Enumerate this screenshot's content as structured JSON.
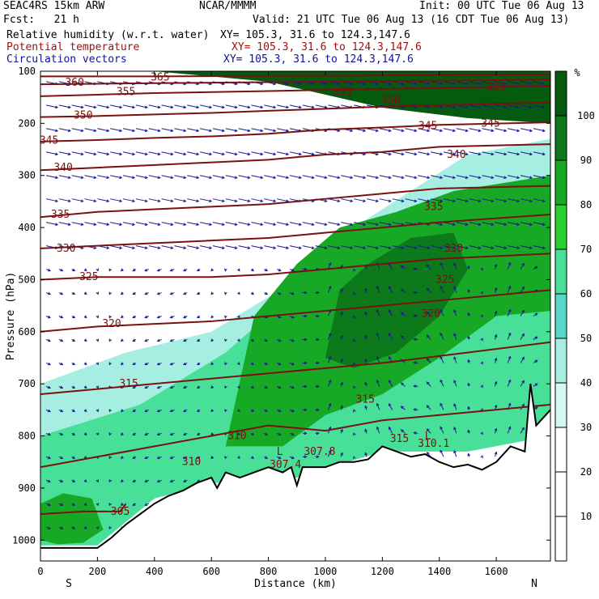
{
  "header": {
    "model": "SEAC4RS 15km ARW",
    "forecast": "Fcst:   21 h",
    "org": "NCAR/MMMM",
    "init": "Init: 00 UTC Tue 06 Aug 13",
    "valid": "Valid: 21 UTC Tue 06 Aug 13 (16 CDT Tue 06 Aug 13)",
    "fields": [
      {
        "label": "Relative humidity (w.r.t. water)",
        "xy": "XY= 105.3, 31.6 to 124.3,147.6",
        "color": "#000000"
      },
      {
        "label": "Potential temperature",
        "xy": "XY= 105.3, 31.6 to 124.3,147.6",
        "color": "#a01010"
      },
      {
        "label": "Circulation vectors",
        "xy": "XY= 105.3, 31.6 to 124.3,147.6",
        "color": "#1010a0"
      }
    ]
  },
  "chart_data": {
    "type": "heatmap",
    "title": "",
    "xlabel": "Distance (km)",
    "ylabel": "Pressure (hPa)",
    "xlim": [
      0,
      1790
    ],
    "ylim": [
      1040,
      100
    ],
    "x_ticks": [
      0,
      200,
      400,
      600,
      800,
      1000,
      1200,
      1400,
      1600
    ],
    "y_ticks": [
      100,
      200,
      300,
      400,
      500,
      600,
      700,
      800,
      900,
      1000
    ],
    "x_end_labels": {
      "left": "S",
      "right": "N"
    },
    "colorbar": {
      "unit": "%",
      "levels": [
        10,
        20,
        30,
        40,
        50,
        60,
        70,
        80,
        90,
        100
      ],
      "colors": [
        "#ffffff",
        "#ffffff",
        "#ffffff",
        "#d6f7f0",
        "#a6eee2",
        "#55d8c8",
        "#48e098",
        "#28d030",
        "#17a825",
        "#0c7a1a",
        "#065a10"
      ]
    },
    "rh_regions": [
      {
        "points": [
          [
            0,
            1010
          ],
          [
            0,
            700
          ],
          [
            300,
            640
          ],
          [
            600,
            600
          ],
          [
            900,
            500
          ],
          [
            1100,
            400
          ],
          [
            1300,
            330
          ],
          [
            1500,
            260
          ],
          [
            1790,
            230
          ],
          [
            1790,
            800
          ],
          [
            1200,
            820
          ],
          [
            800,
            870
          ],
          [
            400,
            920
          ],
          [
            200,
            1010
          ]
        ],
        "rh": 45
      },
      {
        "points": [
          [
            0,
            1010
          ],
          [
            0,
            800
          ],
          [
            350,
            740
          ],
          [
            650,
            640
          ],
          [
            900,
            520
          ],
          [
            1100,
            430
          ],
          [
            1350,
            360
          ],
          [
            1790,
            300
          ],
          [
            1790,
            800
          ],
          [
            1500,
            830
          ],
          [
            1200,
            830
          ],
          [
            900,
            880
          ],
          [
            600,
            890
          ],
          [
            400,
            920
          ],
          [
            200,
            1010
          ]
        ],
        "rh": 65
      },
      {
        "points": [
          [
            650,
            820
          ],
          [
            750,
            570
          ],
          [
            900,
            470
          ],
          [
            1050,
            400
          ],
          [
            1250,
            370
          ],
          [
            1450,
            330
          ],
          [
            1790,
            300
          ],
          [
            1790,
            560
          ],
          [
            1600,
            570
          ],
          [
            1400,
            650
          ],
          [
            1200,
            720
          ],
          [
            1000,
            760
          ],
          [
            850,
            820
          ]
        ],
        "rh": 85
      },
      {
        "points": [
          [
            1000,
            650
          ],
          [
            1050,
            520
          ],
          [
            1150,
            470
          ],
          [
            1300,
            420
          ],
          [
            1450,
            410
          ],
          [
            1500,
            480
          ],
          [
            1400,
            570
          ],
          [
            1250,
            640
          ],
          [
            1100,
            670
          ]
        ],
        "rh": 95
      },
      {
        "points": [
          [
            0,
            1000
          ],
          [
            0,
            930
          ],
          [
            80,
            910
          ],
          [
            180,
            920
          ],
          [
            220,
            980
          ],
          [
            150,
            1005
          ],
          [
            60,
            1008
          ]
        ],
        "rh": 85
      },
      {
        "points": [
          [
            1790,
            100
          ],
          [
            1790,
            200
          ],
          [
            1500,
            190
          ],
          [
            1200,
            170
          ],
          [
            800,
            120
          ],
          [
            400,
            100
          ]
        ],
        "rh": 100
      }
    ],
    "theta_contours": [
      {
        "value": 305,
        "label": "305",
        "label_x": 280,
        "label_y": 945,
        "points": [
          [
            0,
            950
          ],
          [
            150,
            945
          ],
          [
            280,
            945
          ],
          [
            300,
            930
          ]
        ]
      },
      {
        "value": 310,
        "label": "310",
        "label_x": 530,
        "label_y": 850,
        "points": [
          [
            0,
            860
          ],
          [
            200,
            840
          ],
          [
            400,
            820
          ],
          [
            600,
            800
          ],
          [
            800,
            780
          ],
          [
            1000,
            790
          ],
          [
            1200,
            770
          ],
          [
            1400,
            760
          ],
          [
            1790,
            740
          ]
        ]
      },
      {
        "value": 315,
        "label": "315",
        "label_x": 310,
        "label_y": 700,
        "points": [
          [
            0,
            720
          ],
          [
            200,
            710
          ],
          [
            400,
            700
          ],
          [
            600,
            690
          ],
          [
            800,
            680
          ],
          [
            1000,
            670
          ],
          [
            1200,
            660
          ],
          [
            1500,
            640
          ],
          [
            1790,
            620
          ]
        ]
      },
      {
        "value": 320,
        "label": "320",
        "label_x": 250,
        "label_y": 585,
        "points": [
          [
            0,
            600
          ],
          [
            200,
            590
          ],
          [
            400,
            585
          ],
          [
            600,
            580
          ],
          [
            800,
            570
          ],
          [
            1000,
            560
          ],
          [
            1200,
            550
          ],
          [
            1400,
            540
          ],
          [
            1790,
            520
          ]
        ]
      },
      {
        "value": 325,
        "label": "325",
        "label_x": 170,
        "label_y": 495,
        "points": [
          [
            0,
            500
          ],
          [
            200,
            495
          ],
          [
            400,
            495
          ],
          [
            600,
            495
          ],
          [
            800,
            490
          ],
          [
            1000,
            480
          ],
          [
            1200,
            470
          ],
          [
            1400,
            460
          ],
          [
            1790,
            450
          ]
        ]
      },
      {
        "value": 330,
        "label": "330",
        "label_x": 90,
        "label_y": 440,
        "points": [
          [
            0,
            440
          ],
          [
            200,
            435
          ],
          [
            400,
            430
          ],
          [
            600,
            425
          ],
          [
            800,
            420
          ],
          [
            1000,
            410
          ],
          [
            1200,
            400
          ],
          [
            1400,
            390
          ],
          [
            1790,
            375
          ]
        ]
      },
      {
        "value": 335,
        "label": "335",
        "label_x": 70,
        "label_y": 375,
        "points": [
          [
            0,
            380
          ],
          [
            200,
            370
          ],
          [
            400,
            365
          ],
          [
            600,
            360
          ],
          [
            800,
            355
          ],
          [
            1000,
            345
          ],
          [
            1200,
            335
          ],
          [
            1400,
            325
          ],
          [
            1790,
            320
          ]
        ]
      },
      {
        "value": 340,
        "label": "340",
        "label_x": 80,
        "label_y": 285,
        "points": [
          [
            0,
            290
          ],
          [
            200,
            285
          ],
          [
            400,
            280
          ],
          [
            600,
            275
          ],
          [
            800,
            270
          ],
          [
            1000,
            260
          ],
          [
            1200,
            255
          ],
          [
            1400,
            245
          ],
          [
            1790,
            240
          ]
        ]
      },
      {
        "value": 345,
        "label": "345",
        "label_x": 30,
        "label_y": 233,
        "points": [
          [
            0,
            235
          ],
          [
            200,
            232
          ],
          [
            400,
            228
          ],
          [
            600,
            225
          ],
          [
            800,
            220
          ],
          [
            1000,
            212
          ],
          [
            1200,
            208
          ],
          [
            1400,
            203
          ],
          [
            1790,
            198
          ]
        ]
      },
      {
        "value": 350,
        "label": "350",
        "label_x": 150,
        "label_y": 185,
        "points": [
          [
            0,
            188
          ],
          [
            200,
            186
          ],
          [
            400,
            183
          ],
          [
            600,
            180
          ],
          [
            800,
            176
          ],
          [
            1000,
            172
          ],
          [
            1200,
            168
          ],
          [
            1400,
            165
          ],
          [
            1790,
            160
          ]
        ]
      },
      {
        "value": 355,
        "label": "355",
        "label_x": 300,
        "label_y": 140,
        "points": [
          [
            0,
            148
          ],
          [
            200,
            145
          ],
          [
            400,
            142
          ],
          [
            600,
            140
          ],
          [
            800,
            138
          ],
          [
            1000,
            136
          ],
          [
            1200,
            134
          ],
          [
            1400,
            132
          ],
          [
            1790,
            128
          ]
        ]
      },
      {
        "value": 360,
        "label": "360",
        "label_x": 120,
        "label_y": 122,
        "points": [
          [
            0,
            125
          ],
          [
            200,
            124
          ],
          [
            400,
            123
          ],
          [
            600,
            122
          ],
          [
            800,
            121
          ],
          [
            1000,
            120
          ],
          [
            1200,
            119
          ],
          [
            1400,
            118
          ],
          [
            1790,
            116
          ]
        ]
      },
      {
        "value": 365,
        "label": "365",
        "label_x": 420,
        "label_y": 112,
        "points": [
          [
            0,
            110
          ],
          [
            400,
            110
          ],
          [
            800,
            109
          ],
          [
            1200,
            108
          ],
          [
            1790,
            106
          ]
        ]
      }
    ],
    "contour_labels": [
      {
        "text": "355",
        "x": 1060,
        "y": 140
      },
      {
        "text": "350",
        "x": 1230,
        "y": 155
      },
      {
        "text": "345",
        "x": 1360,
        "y": 205
      },
      {
        "text": "345",
        "x": 1580,
        "y": 200
      },
      {
        "text": "340",
        "x": 1460,
        "y": 260
      },
      {
        "text": "335",
        "x": 1380,
        "y": 360
      },
      {
        "text": "330",
        "x": 1450,
        "y": 440
      },
      {
        "text": "325",
        "x": 1420,
        "y": 500
      },
      {
        "text": "320",
        "x": 1370,
        "y": 565
      },
      {
        "text": "315",
        "x": 1140,
        "y": 730
      },
      {
        "text": "315",
        "x": 1260,
        "y": 805
      },
      {
        "text": "310",
        "x": 690,
        "y": 800
      },
      {
        "text": "L",
        "x": 840,
        "y": 830
      },
      {
        "text": "307.4",
        "x": 860,
        "y": 855
      },
      {
        "text": "307.8",
        "x": 980,
        "y": 830
      },
      {
        "text": "L",
        "x": 1360,
        "y": 800
      },
      {
        "text": "310.1",
        "x": 1380,
        "y": 815
      },
      {
        "text": "335",
        "x": 1600,
        "y": 130
      }
    ],
    "terrain": [
      [
        0,
        1015
      ],
      [
        100,
        1015
      ],
      [
        200,
        1015
      ],
      [
        250,
        995
      ],
      [
        300,
        970
      ],
      [
        350,
        950
      ],
      [
        400,
        930
      ],
      [
        450,
        915
      ],
      [
        500,
        905
      ],
      [
        550,
        890
      ],
      [
        600,
        880
      ],
      [
        620,
        900
      ],
      [
        650,
        870
      ],
      [
        700,
        880
      ],
      [
        750,
        870
      ],
      [
        800,
        860
      ],
      [
        850,
        870
      ],
      [
        880,
        860
      ],
      [
        900,
        895
      ],
      [
        920,
        860
      ],
      [
        1000,
        860
      ],
      [
        1050,
        850
      ],
      [
        1100,
        850
      ],
      [
        1150,
        845
      ],
      [
        1200,
        820
      ],
      [
        1250,
        830
      ],
      [
        1300,
        840
      ],
      [
        1350,
        835
      ],
      [
        1400,
        850
      ],
      [
        1450,
        860
      ],
      [
        1500,
        855
      ],
      [
        1550,
        865
      ],
      [
        1600,
        850
      ],
      [
        1650,
        820
      ],
      [
        1700,
        830
      ],
      [
        1720,
        700
      ],
      [
        1740,
        780
      ],
      [
        1790,
        750
      ]
    ],
    "vectors_note": "",
    "colorbar_labels": [
      "10",
      "20",
      "30",
      "40",
      "50",
      "60",
      "70",
      "80",
      "90",
      "100"
    ]
  }
}
